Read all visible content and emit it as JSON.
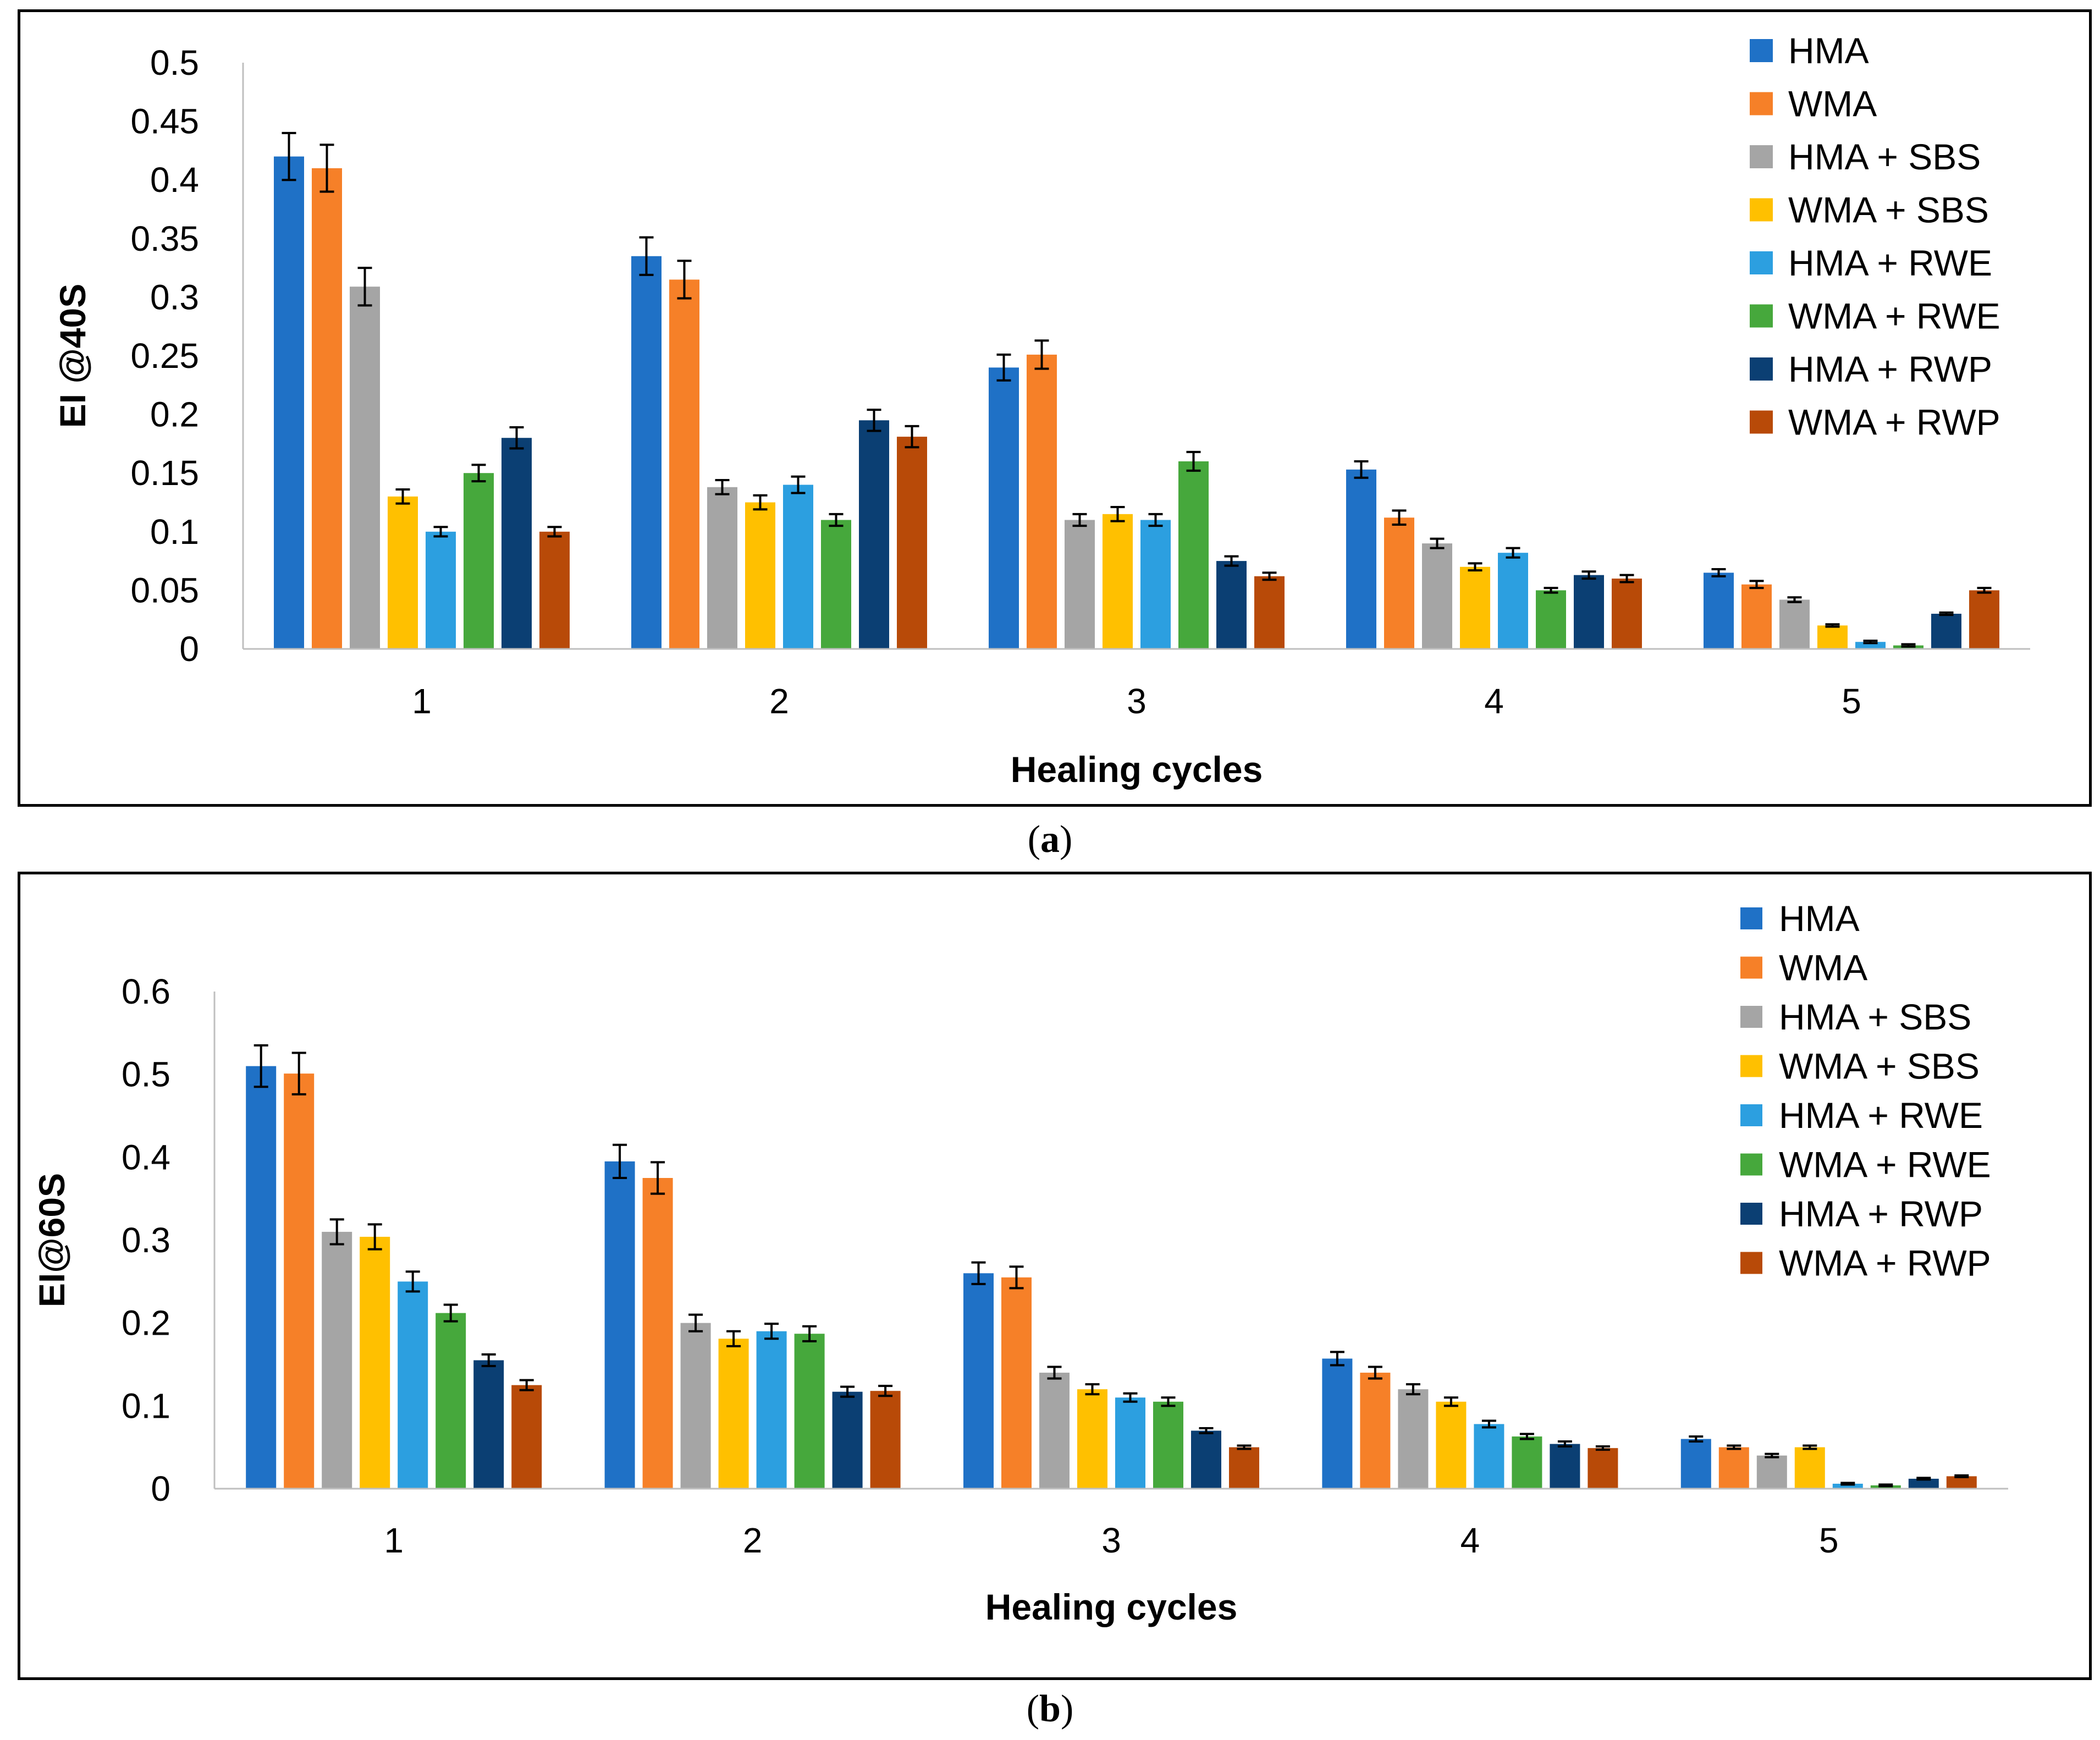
{
  "chart_data": [
    {
      "type": "bar",
      "caption_letter": "a",
      "categories": [
        "1",
        "2",
        "3",
        "4",
        "5"
      ],
      "xlabel": "Healing cycles",
      "ylabel": "EI @40S",
      "ylim": [
        0,
        0.5
      ],
      "yticks": [
        "0",
        "0.05",
        "0.1",
        "0.15",
        "0.2",
        "0.25",
        "0.3",
        "0.35",
        "0.4",
        "0.45",
        "0.5"
      ],
      "ytick_values": [
        0,
        0.05,
        0.1,
        0.15,
        0.2,
        0.25,
        0.3,
        0.35,
        0.4,
        0.45,
        0.5
      ],
      "error_bars": true,
      "legend_position": "top-right",
      "series": [
        {
          "name": "HMA",
          "color": "#1F71C6",
          "values": [
            0.42,
            0.335,
            0.24,
            0.153,
            0.065
          ],
          "errors": [
            0.02,
            0.016,
            0.011,
            0.007,
            0.003
          ]
        },
        {
          "name": "WMA",
          "color": "#F68028",
          "values": [
            0.41,
            0.315,
            0.251,
            0.112,
            0.055
          ],
          "errors": [
            0.02,
            0.016,
            0.012,
            0.006,
            0.003
          ]
        },
        {
          "name": "HMA + SBS",
          "color": "#A5A5A5",
          "values": [
            0.309,
            0.138,
            0.11,
            0.09,
            0.042
          ],
          "errors": [
            0.016,
            0.006,
            0.005,
            0.004,
            0.002
          ]
        },
        {
          "name": "WMA + SBS",
          "color": "#FFC000",
          "values": [
            0.13,
            0.125,
            0.115,
            0.07,
            0.02
          ],
          "errors": [
            0.006,
            0.006,
            0.006,
            0.003,
            0.001
          ]
        },
        {
          "name": "HMA + RWE",
          "color": "#2C9FE0",
          "values": [
            0.1,
            0.14,
            0.11,
            0.082,
            0.006
          ],
          "errors": [
            0.004,
            0.007,
            0.005,
            0.004,
            0.001
          ]
        },
        {
          "name": "WMA + RWE",
          "color": "#46A83C",
          "values": [
            0.15,
            0.11,
            0.16,
            0.05,
            0.003
          ],
          "errors": [
            0.007,
            0.005,
            0.008,
            0.002,
            0.001
          ]
        },
        {
          "name": "HMA + RWP",
          "color": "#0B3F73",
          "values": [
            0.18,
            0.195,
            0.075,
            0.063,
            0.03
          ],
          "errors": [
            0.009,
            0.009,
            0.004,
            0.003,
            0.001
          ]
        },
        {
          "name": "WMA + RWP",
          "color": "#B84A08",
          "values": [
            0.1,
            0.181,
            0.062,
            0.06,
            0.05
          ],
          "errors": [
            0.004,
            0.009,
            0.003,
            0.003,
            0.002
          ]
        }
      ]
    },
    {
      "type": "bar",
      "caption_letter": "b",
      "categories": [
        "1",
        "2",
        "3",
        "4",
        "5"
      ],
      "xlabel": "Healing cycles",
      "ylabel": "EI@60S",
      "ylim": [
        0,
        0.6
      ],
      "yticks": [
        "0",
        "0.1",
        "0.2",
        "0.3",
        "0.4",
        "0.5",
        "0.6"
      ],
      "ytick_values": [
        0,
        0.1,
        0.2,
        0.3,
        0.4,
        0.5,
        0.6
      ],
      "error_bars": true,
      "legend_position": "top-right",
      "series": [
        {
          "name": "HMA",
          "color": "#1F71C6",
          "values": [
            0.51,
            0.395,
            0.26,
            0.157,
            0.06
          ],
          "errors": [
            0.025,
            0.02,
            0.013,
            0.008,
            0.003
          ]
        },
        {
          "name": "WMA",
          "color": "#F68028",
          "values": [
            0.501,
            0.375,
            0.255,
            0.14,
            0.05
          ],
          "errors": [
            0.025,
            0.019,
            0.013,
            0.007,
            0.002
          ]
        },
        {
          "name": "HMA + SBS",
          "color": "#A5A5A5",
          "values": [
            0.31,
            0.2,
            0.14,
            0.12,
            0.04
          ],
          "errors": [
            0.015,
            0.01,
            0.007,
            0.006,
            0.002
          ]
        },
        {
          "name": "WMA + SBS",
          "color": "#FFC000",
          "values": [
            0.304,
            0.181,
            0.12,
            0.105,
            0.05
          ],
          "errors": [
            0.015,
            0.009,
            0.006,
            0.005,
            0.002
          ]
        },
        {
          "name": "HMA + RWE",
          "color": "#2C9FE0",
          "values": [
            0.25,
            0.19,
            0.11,
            0.078,
            0.006
          ],
          "errors": [
            0.012,
            0.009,
            0.005,
            0.004,
            0.001
          ]
        },
        {
          "name": "WMA + RWE",
          "color": "#46A83C",
          "values": [
            0.212,
            0.187,
            0.105,
            0.063,
            0.004
          ],
          "errors": [
            0.01,
            0.009,
            0.005,
            0.003,
            0.001
          ]
        },
        {
          "name": "HMA + RWP",
          "color": "#0B3F73",
          "values": [
            0.155,
            0.117,
            0.07,
            0.054,
            0.012
          ],
          "errors": [
            0.007,
            0.006,
            0.003,
            0.003,
            0.001
          ]
        },
        {
          "name": "WMA + RWP",
          "color": "#B84A08",
          "values": [
            0.125,
            0.118,
            0.05,
            0.049,
            0.015
          ],
          "errors": [
            0.006,
            0.006,
            0.002,
            0.002,
            0.001
          ]
        }
      ]
    }
  ]
}
